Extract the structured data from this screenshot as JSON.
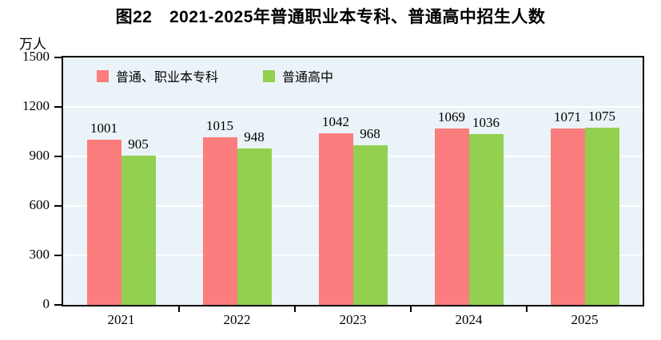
{
  "title": "图22　2021-2025年普通职业本专科、普通高中招生人数",
  "y_axis_unit": "万人",
  "chart_data": {
    "type": "bar",
    "title": "图22　2021-2025年普通职业本专科、普通高中招生人数",
    "categories": [
      "2021",
      "2022",
      "2023",
      "2024",
      "2025"
    ],
    "series": [
      {
        "name": "普通、职业本专科",
        "color": "#FC7D7D",
        "values": [
          1001,
          1015,
          1042,
          1069,
          1071
        ]
      },
      {
        "name": "普通高中",
        "color": "#92D050",
        "values": [
          905,
          948,
          968,
          1036,
          1075
        ]
      }
    ],
    "xlabel": "",
    "ylabel": "万人",
    "ylim": [
      0,
      1500
    ],
    "yticks": [
      0,
      300,
      600,
      900,
      1200,
      1500
    ],
    "grid": true,
    "gridline_color": "#FFFFFF",
    "plot_background": "#EAF3F8",
    "border_color": "#000000",
    "legend_position": "top-left-inside",
    "value_labels": true
  }
}
